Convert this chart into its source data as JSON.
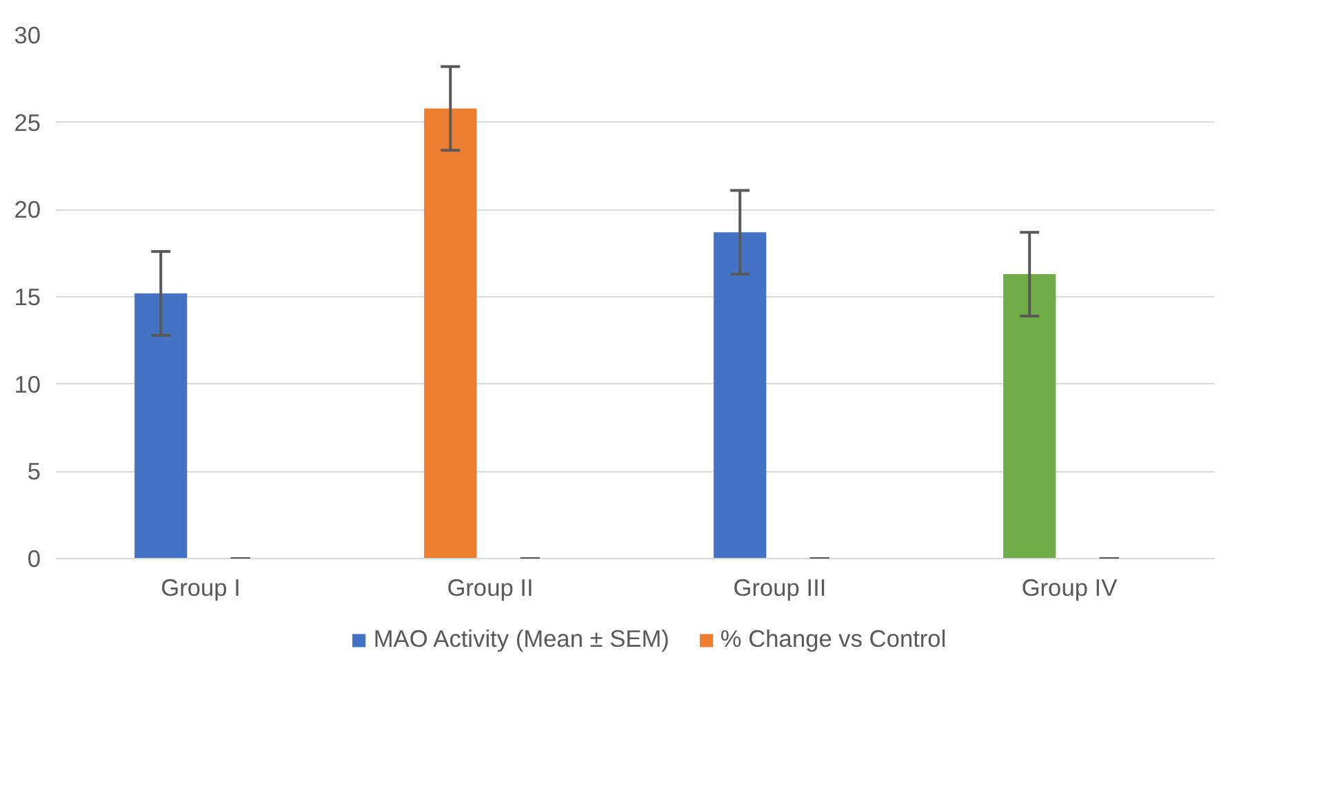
{
  "chart_data": {
    "type": "bar",
    "categories": [
      "Group I",
      "Group II",
      "Group III",
      "Group IV"
    ],
    "series": [
      {
        "name": "MAO Activity (Mean ± SEM)",
        "color": "#4472c4",
        "colors": [
          "#4472c4",
          "#ed7d31",
          "#4472c4",
          "#70ad47"
        ],
        "values": [
          15.2,
          25.8,
          18.7,
          16.3
        ],
        "errors": [
          2.4,
          2.4,
          2.4,
          2.4
        ]
      },
      {
        "name": "% Change vs Control",
        "color": "#ed7d31",
        "values": [
          0,
          0,
          0,
          0
        ],
        "errors": [
          0,
          0,
          0,
          0
        ]
      }
    ],
    "ylim": [
      0,
      30
    ],
    "yticks": [
      0,
      5,
      10,
      15,
      20,
      25,
      30
    ],
    "grid": "y",
    "legend": "bottom"
  }
}
